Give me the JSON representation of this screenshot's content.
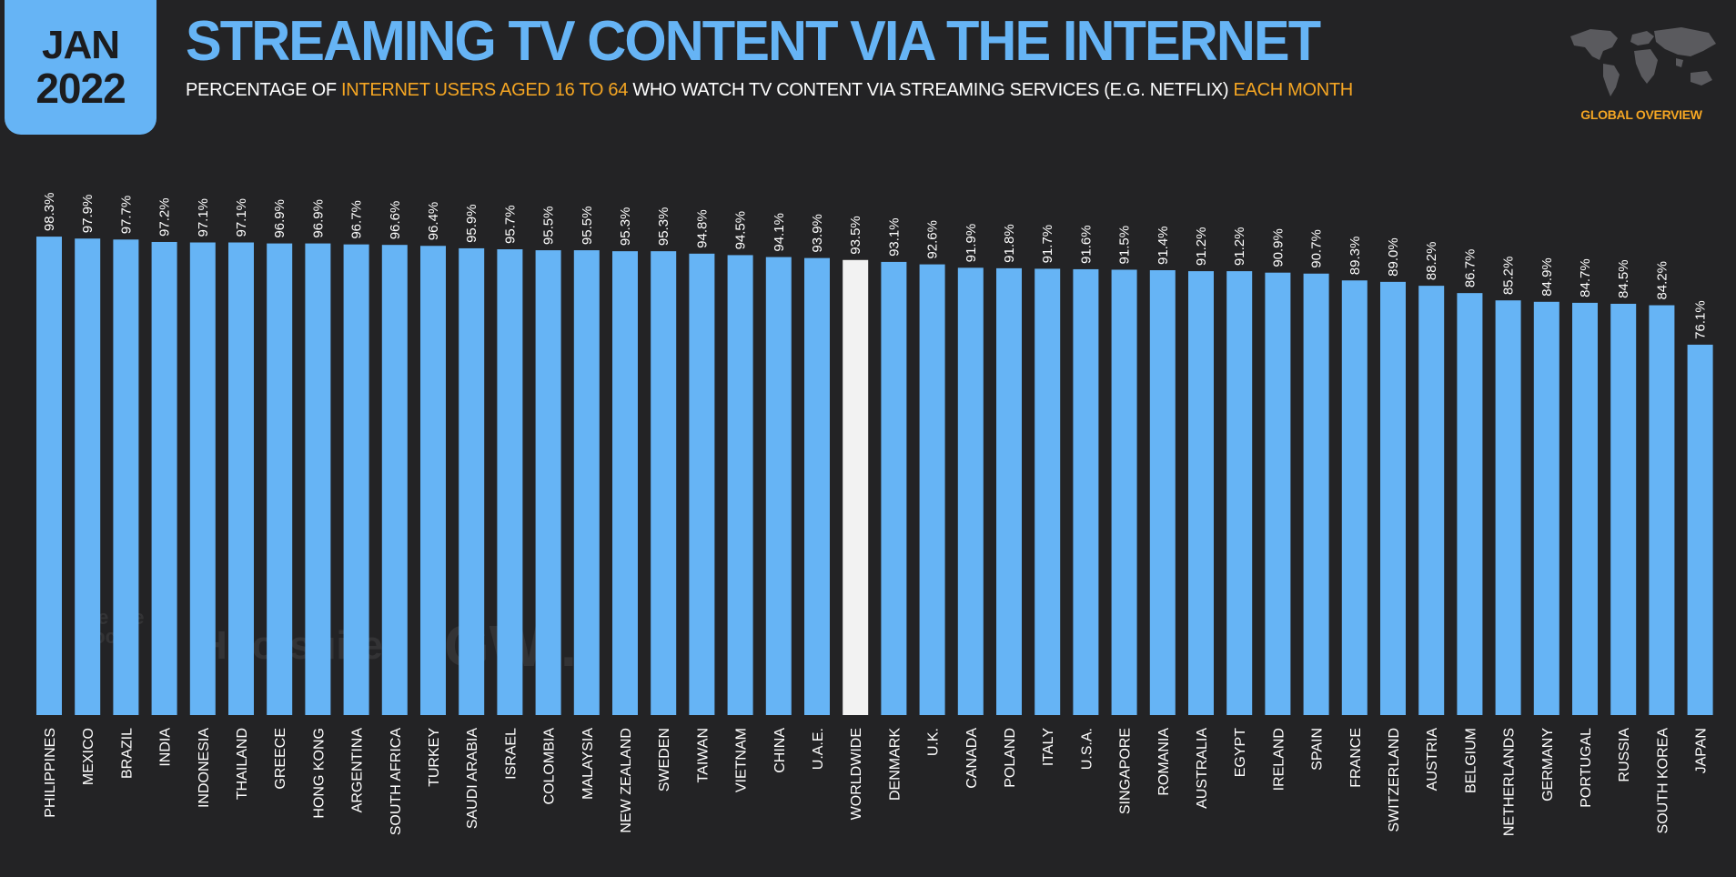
{
  "header": {
    "badge_month": "JAN",
    "badge_year": "2022",
    "title": "STREAMING TV CONTENT VIA THE INTERNET",
    "subtitle_parts": {
      "p1": "PERCENTAGE OF ",
      "p2": "INTERNET USERS AGED 16 TO 64",
      "p3": " WHO WATCH TV CONTENT VIA STREAMING SERVICES (E.G. NETFLIX) ",
      "p4": "EACH MONTH"
    },
    "region_label": "GLOBAL OVERVIEW",
    "map_icon": "world-map-icon"
  },
  "watermarks": {
    "we_are_social": "we are social",
    "hootsuite": "Hootsuite",
    "gwi": "GWI."
  },
  "colors": {
    "background": "#232325",
    "accent_blue": "#66b4f5",
    "highlight_orange": "#f5a623",
    "worldwide_bar": "#f2f2f2"
  },
  "chart_data": {
    "type": "bar",
    "title": "STREAMING TV CONTENT VIA THE INTERNET",
    "categories": [
      "PHILIPPINES",
      "MEXICO",
      "BRAZIL",
      "INDIA",
      "INDONESIA",
      "THAILAND",
      "GREECE",
      "HONG KONG",
      "ARGENTINA",
      "SOUTH AFRICA",
      "TURKEY",
      "SAUDI ARABIA",
      "ISRAEL",
      "COLOMBIA",
      "MALAYSIA",
      "NEW ZEALAND",
      "SWEDEN",
      "TAIWAN",
      "VIETNAM",
      "CHINA",
      "U.A.E.",
      "WORLDWIDE",
      "DENMARK",
      "U.K.",
      "CANADA",
      "POLAND",
      "ITALY",
      "U.S.A.",
      "SINGAPORE",
      "ROMANIA",
      "AUSTRALIA",
      "EGYPT",
      "IRELAND",
      "SPAIN",
      "FRANCE",
      "SWITZERLAND",
      "AUSTRIA",
      "BELGIUM",
      "NETHERLANDS",
      "GERMANY",
      "PORTUGAL",
      "RUSSIA",
      "SOUTH KOREA",
      "JAPAN"
    ],
    "values": [
      98.3,
      97.9,
      97.7,
      97.2,
      97.1,
      97.1,
      96.9,
      96.9,
      96.7,
      96.6,
      96.4,
      95.9,
      95.7,
      95.5,
      95.5,
      95.3,
      95.3,
      94.8,
      94.5,
      94.1,
      93.9,
      93.5,
      93.1,
      92.6,
      91.9,
      91.8,
      91.7,
      91.6,
      91.5,
      91.4,
      91.2,
      91.2,
      90.9,
      90.7,
      89.3,
      89.0,
      88.2,
      86.7,
      85.2,
      84.9,
      84.7,
      84.5,
      84.2,
      76.1
    ],
    "value_labels": [
      "98.3%",
      "97.9%",
      "97.7%",
      "97.2%",
      "97.1%",
      "97.1%",
      "96.9%",
      "96.9%",
      "96.7%",
      "96.6%",
      "96.4%",
      "95.9%",
      "95.7%",
      "95.5%",
      "95.5%",
      "95.3%",
      "95.3%",
      "94.8%",
      "94.5%",
      "94.1%",
      "93.9%",
      "93.5%",
      "93.1%",
      "92.6%",
      "91.9%",
      "91.8%",
      "91.7%",
      "91.6%",
      "91.5%",
      "91.4%",
      "91.2%",
      "91.2%",
      "90.9%",
      "90.7%",
      "89.3%",
      "89.0%",
      "88.2%",
      "86.7%",
      "85.2%",
      "84.9%",
      "84.7%",
      "84.5%",
      "84.2%",
      "76.1%"
    ],
    "highlight_category": "WORLDWIDE",
    "ylim": [
      0,
      100
    ],
    "grid": false,
    "legend": "none",
    "xlabel": "",
    "ylabel": ""
  }
}
